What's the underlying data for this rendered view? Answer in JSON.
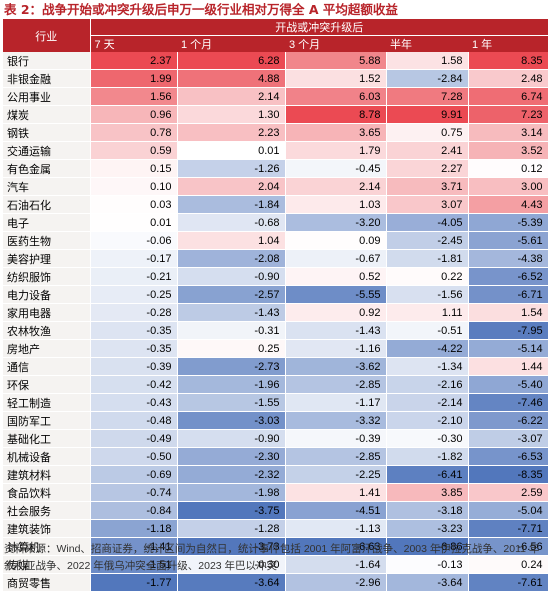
{
  "title": "表 2：战争开始或冲突升级后申万一级行业相对万得全 A 平均超额收益",
  "table": {
    "industry_header": "行业",
    "group_header": "开战或冲突升级后",
    "periods": [
      "7 天",
      "1 个月",
      "3 个月",
      "半年",
      "1 年"
    ],
    "rows": [
      {
        "name": "银行",
        "values": [
          "2.37",
          "6.28",
          "5.88",
          "1.58",
          "8.35"
        ]
      },
      {
        "name": "非银金融",
        "values": [
          "1.99",
          "4.88",
          "1.52",
          "-2.84",
          "2.48"
        ]
      },
      {
        "name": "公用事业",
        "values": [
          "1.56",
          "2.14",
          "6.03",
          "7.28",
          "6.74"
        ]
      },
      {
        "name": "煤炭",
        "values": [
          "0.96",
          "1.30",
          "8.78",
          "9.91",
          "7.23"
        ]
      },
      {
        "name": "钢铁",
        "values": [
          "0.78",
          "2.23",
          "3.65",
          "0.75",
          "3.14"
        ]
      },
      {
        "name": "交通运输",
        "values": [
          "0.59",
          "0.01",
          "1.79",
          "2.41",
          "3.52"
        ]
      },
      {
        "name": "有色金属",
        "values": [
          "0.15",
          "-1.26",
          "-0.45",
          "2.27",
          "0.12"
        ]
      },
      {
        "name": "汽车",
        "values": [
          "0.10",
          "2.04",
          "2.14",
          "3.71",
          "3.00"
        ]
      },
      {
        "name": "石油石化",
        "values": [
          "0.03",
          "-1.84",
          "1.03",
          "3.07",
          "4.43"
        ]
      },
      {
        "name": "电子",
        "values": [
          "0.01",
          "-0.68",
          "-3.20",
          "-4.05",
          "-5.39"
        ]
      },
      {
        "name": "医药生物",
        "values": [
          "-0.06",
          "1.04",
          "0.09",
          "-2.45",
          "-5.61"
        ]
      },
      {
        "name": "美容护理",
        "values": [
          "-0.17",
          "-2.08",
          "-0.67",
          "-1.81",
          "-4.38"
        ]
      },
      {
        "name": "纺织服饰",
        "values": [
          "-0.21",
          "-0.90",
          "0.52",
          "0.22",
          "-6.52"
        ]
      },
      {
        "name": "电力设备",
        "values": [
          "-0.25",
          "-2.57",
          "-5.55",
          "-1.56",
          "-6.71"
        ]
      },
      {
        "name": "家用电器",
        "values": [
          "-0.28",
          "-1.43",
          "0.92",
          "1.11",
          "1.54"
        ]
      },
      {
        "name": "农林牧渔",
        "values": [
          "-0.35",
          "-0.31",
          "-1.43",
          "-0.51",
          "-7.95"
        ]
      },
      {
        "name": "房地产",
        "values": [
          "-0.35",
          "0.25",
          "-1.16",
          "-4.22",
          "-5.14"
        ]
      },
      {
        "name": "通信",
        "values": [
          "-0.39",
          "-2.73",
          "-3.62",
          "-1.34",
          "1.44"
        ]
      },
      {
        "name": "环保",
        "values": [
          "-0.42",
          "-1.96",
          "-2.85",
          "-2.16",
          "-5.40"
        ]
      },
      {
        "name": "轻工制造",
        "values": [
          "-0.43",
          "-1.55",
          "-1.17",
          "-2.14",
          "-7.46"
        ]
      },
      {
        "name": "国防军工",
        "values": [
          "-0.48",
          "-3.03",
          "-3.32",
          "-2.10",
          "-6.22"
        ]
      },
      {
        "name": "基础化工",
        "values": [
          "-0.49",
          "-0.90",
          "-0.39",
          "-0.30",
          "-3.07"
        ]
      },
      {
        "name": "机械设备",
        "values": [
          "-0.50",
          "-2.30",
          "-2.85",
          "-1.82",
          "-6.53"
        ]
      },
      {
        "name": "建筑材料",
        "values": [
          "-0.69",
          "-2.32",
          "-2.25",
          "-6.41",
          "-8.35"
        ]
      },
      {
        "name": "食品饮料",
        "values": [
          "-0.74",
          "-1.98",
          "1.41",
          "3.85",
          "2.59"
        ]
      },
      {
        "name": "社会服务",
        "values": [
          "-0.84",
          "-3.75",
          "-4.51",
          "-3.18",
          "-5.04"
        ]
      },
      {
        "name": "建筑装饰",
        "values": [
          "-1.18",
          "-1.28",
          "-1.13",
          "-3.23",
          "-7.71"
        ]
      },
      {
        "name": "计算机",
        "values": [
          "-1.41",
          "-3.73",
          "-6.63",
          "-6.86",
          "-6.56"
        ]
      },
      {
        "name": "传媒",
        "values": [
          "-1.51",
          "-0.30",
          "-1.64",
          "-0.13",
          "0.24"
        ]
      },
      {
        "name": "商贸零售",
        "values": [
          "-1.77",
          "-3.64",
          "-2.96",
          "-3.64",
          "-7.61"
        ]
      }
    ]
  },
  "colors": {
    "header_bg": "#b8242a",
    "positive": "#e8313b",
    "negative": "#3a64b3",
    "name_cell_bg": "#f5f3f1"
  },
  "footer": "资料来源：Wind、招商证券，统计区间为自然日，统计事件包括 2001 年阿富汗战争、2003 年伊拉克战争、2011 年叙利亚战争、2022 年俄乌冲突全面升级、2023 年巴以冲突"
}
